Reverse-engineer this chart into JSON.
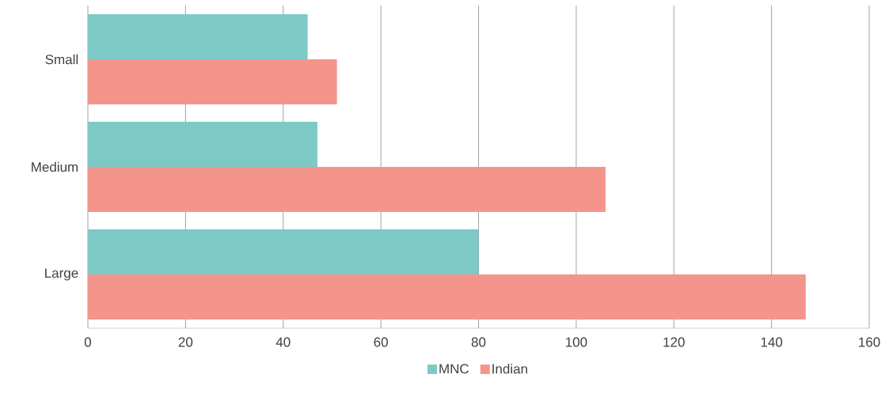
{
  "chart_data": {
    "type": "bar",
    "orientation": "horizontal",
    "categories": [
      "Small",
      "Medium",
      "Large"
    ],
    "series": [
      {
        "name": "MNC",
        "color": "#7cc9c6",
        "values": [
          45,
          47,
          80
        ]
      },
      {
        "name": "Indian",
        "color": "#f4958b",
        "values": [
          51,
          106,
          147
        ]
      }
    ],
    "xlim": [
      0,
      160
    ],
    "xticks": [
      0,
      20,
      40,
      60,
      80,
      100,
      120,
      140,
      160
    ],
    "grid": "x",
    "legend": "bottom"
  }
}
